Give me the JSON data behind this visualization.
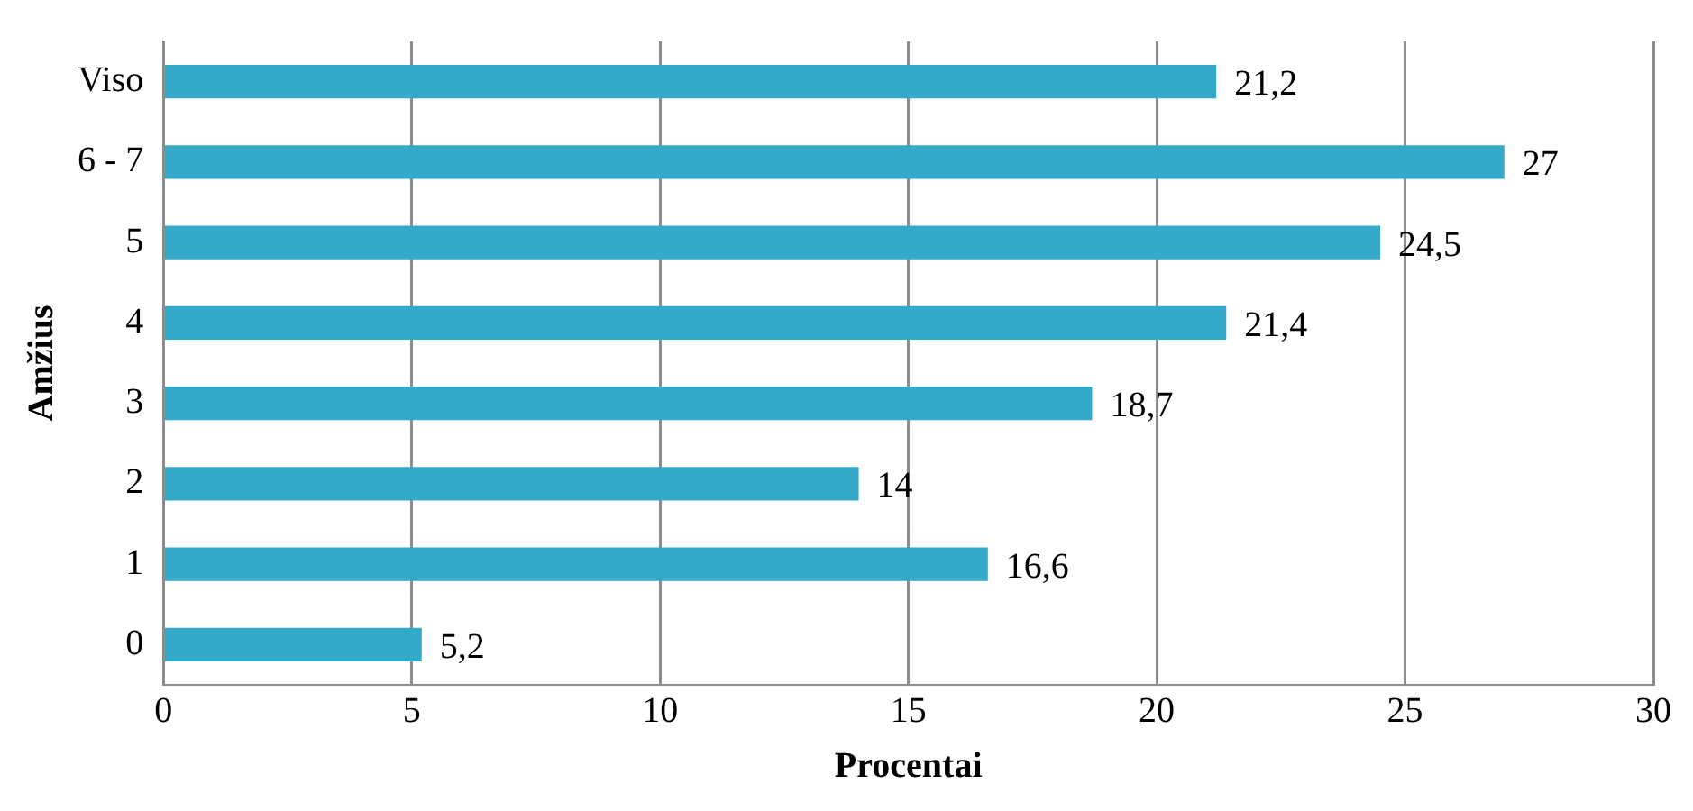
{
  "chart_data": {
    "type": "bar",
    "orientation": "horizontal",
    "xlabel": "Procentai",
    "ylabel": "Amžius",
    "categories": [
      "Viso",
      "6 - 7",
      "5",
      "4",
      "3",
      "2",
      "1",
      "0"
    ],
    "values": [
      21.2,
      27,
      24.5,
      21.4,
      18.7,
      14,
      16.6,
      5.2
    ],
    "value_labels": [
      "21,2",
      "27",
      "24,5",
      "21,4",
      "18,7",
      "14",
      "16,6",
      "5,2"
    ],
    "color": "#35a9c9",
    "xlim": [
      0,
      30
    ],
    "xticks": [
      0,
      5,
      10,
      15,
      20,
      25,
      30
    ],
    "grid": "x",
    "legend": false
  }
}
